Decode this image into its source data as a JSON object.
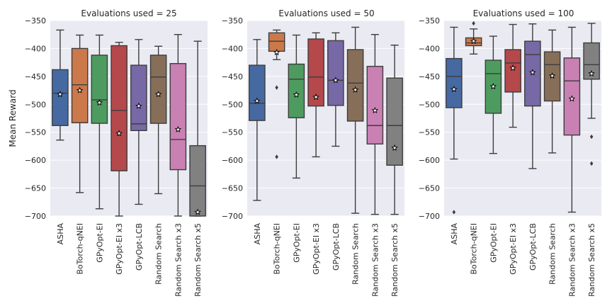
{
  "chart_data": {
    "type": "box",
    "ylabel": "Mean Reward",
    "ylim": [
      -700,
      -350
    ],
    "yticks": [
      -350,
      -400,
      -450,
      -500,
      -550,
      -600,
      -650,
      -700
    ],
    "grid": true,
    "categories": [
      "ASHA",
      "BoTorch-qNEI",
      "GPyOpt-EI",
      "GPyOpt-EI x3",
      "GPyOpt-LCB",
      "Random Search",
      "Random Search x3",
      "Random Search x5"
    ],
    "colors": [
      "#4c72b0",
      "#dd8452",
      "#55a868",
      "#c44e52",
      "#8172b3",
      "#937860",
      "#da8bc3",
      "#8c8c8c"
    ],
    "subplots": [
      {
        "title": "Evaluations used = 25",
        "boxes": [
          {
            "q1": -538,
            "median": -480,
            "q3": -438,
            "whislo": -564,
            "whishi": -367,
            "mean": -482,
            "fliers": []
          },
          {
            "q1": -533,
            "median": -465,
            "q3": -400,
            "whislo": -658,
            "whishi": -376,
            "mean": -475,
            "fliers": []
          },
          {
            "q1": -534,
            "median": -492,
            "q3": -412,
            "whislo": -687,
            "whishi": -376,
            "mean": -497,
            "fliers": []
          },
          {
            "q1": -619,
            "median": -511,
            "q3": -395,
            "whislo": -700,
            "whishi": -389,
            "mean": -552,
            "fliers": []
          },
          {
            "q1": -547,
            "median": -535,
            "q3": -430,
            "whislo": -679,
            "whishi": -384,
            "mean": -503,
            "fliers": []
          },
          {
            "q1": -534,
            "median": -451,
            "q3": -412,
            "whislo": -660,
            "whishi": -396,
            "mean": -482,
            "fliers": []
          },
          {
            "q1": -617,
            "median": -563,
            "q3": -427,
            "whislo": -700,
            "whishi": -375,
            "mean": -545,
            "fliers": []
          },
          {
            "q1": -700,
            "median": -646,
            "q3": -574,
            "whislo": -700,
            "whishi": -387,
            "mean": -693,
            "fliers": []
          }
        ]
      },
      {
        "title": "Evaluations used = 50",
        "boxes": [
          {
            "q1": -529,
            "median": -498,
            "q3": -430,
            "whislo": -672,
            "whishi": -384,
            "mean": -494,
            "fliers": []
          },
          {
            "q1": -405,
            "median": -387,
            "q3": -372,
            "whislo": -420,
            "whishi": -367,
            "mean": -407,
            "fliers": [
              -470,
              -594
            ]
          },
          {
            "q1": -524,
            "median": -455,
            "q3": -428,
            "whislo": -632,
            "whishi": -376,
            "mean": -483,
            "fliers": []
          },
          {
            "q1": -503,
            "median": -451,
            "q3": -383,
            "whislo": -594,
            "whishi": -372,
            "mean": -487,
            "fliers": []
          },
          {
            "q1": -502,
            "median": -457,
            "q3": -386,
            "whislo": -575,
            "whishi": -372,
            "mean": -457,
            "fliers": []
          },
          {
            "q1": -530,
            "median": -462,
            "q3": -402,
            "whislo": -695,
            "whishi": -362,
            "mean": -474,
            "fliers": []
          },
          {
            "q1": -571,
            "median": -538,
            "q3": -432,
            "whislo": -697,
            "whishi": -375,
            "mean": -511,
            "fliers": []
          },
          {
            "q1": -609,
            "median": -538,
            "q3": -453,
            "whislo": -697,
            "whishi": -394,
            "mean": -578,
            "fliers": []
          }
        ]
      },
      {
        "title": "Evaluations used = 100",
        "boxes": [
          {
            "q1": -506,
            "median": -450,
            "q3": -418,
            "whislo": -598,
            "whishi": -362,
            "mean": -473,
            "fliers": [
              -693
            ]
          },
          {
            "q1": -395,
            "median": -390,
            "q3": -381,
            "whislo": -410,
            "whishi": -365,
            "mean": -387,
            "fliers": [
              -355
            ]
          },
          {
            "q1": -516,
            "median": -445,
            "q3": -421,
            "whislo": -588,
            "whishi": -378,
            "mean": -468,
            "fliers": []
          },
          {
            "q1": -478,
            "median": -426,
            "q3": -402,
            "whislo": -541,
            "whishi": -357,
            "mean": -435,
            "fliers": []
          },
          {
            "q1": -503,
            "median": -411,
            "q3": -387,
            "whislo": -615,
            "whishi": -356,
            "mean": -443,
            "fliers": []
          },
          {
            "q1": -494,
            "median": -429,
            "q3": -406,
            "whislo": -587,
            "whishi": -367,
            "mean": -449,
            "fliers": []
          },
          {
            "q1": -555,
            "median": -458,
            "q3": -417,
            "whislo": -693,
            "whishi": -362,
            "mean": -490,
            "fliers": []
          },
          {
            "q1": -455,
            "median": -429,
            "q3": -390,
            "whislo": -525,
            "whishi": -355,
            "mean": -445,
            "fliers": [
              -558,
              -606
            ]
          }
        ]
      }
    ]
  }
}
